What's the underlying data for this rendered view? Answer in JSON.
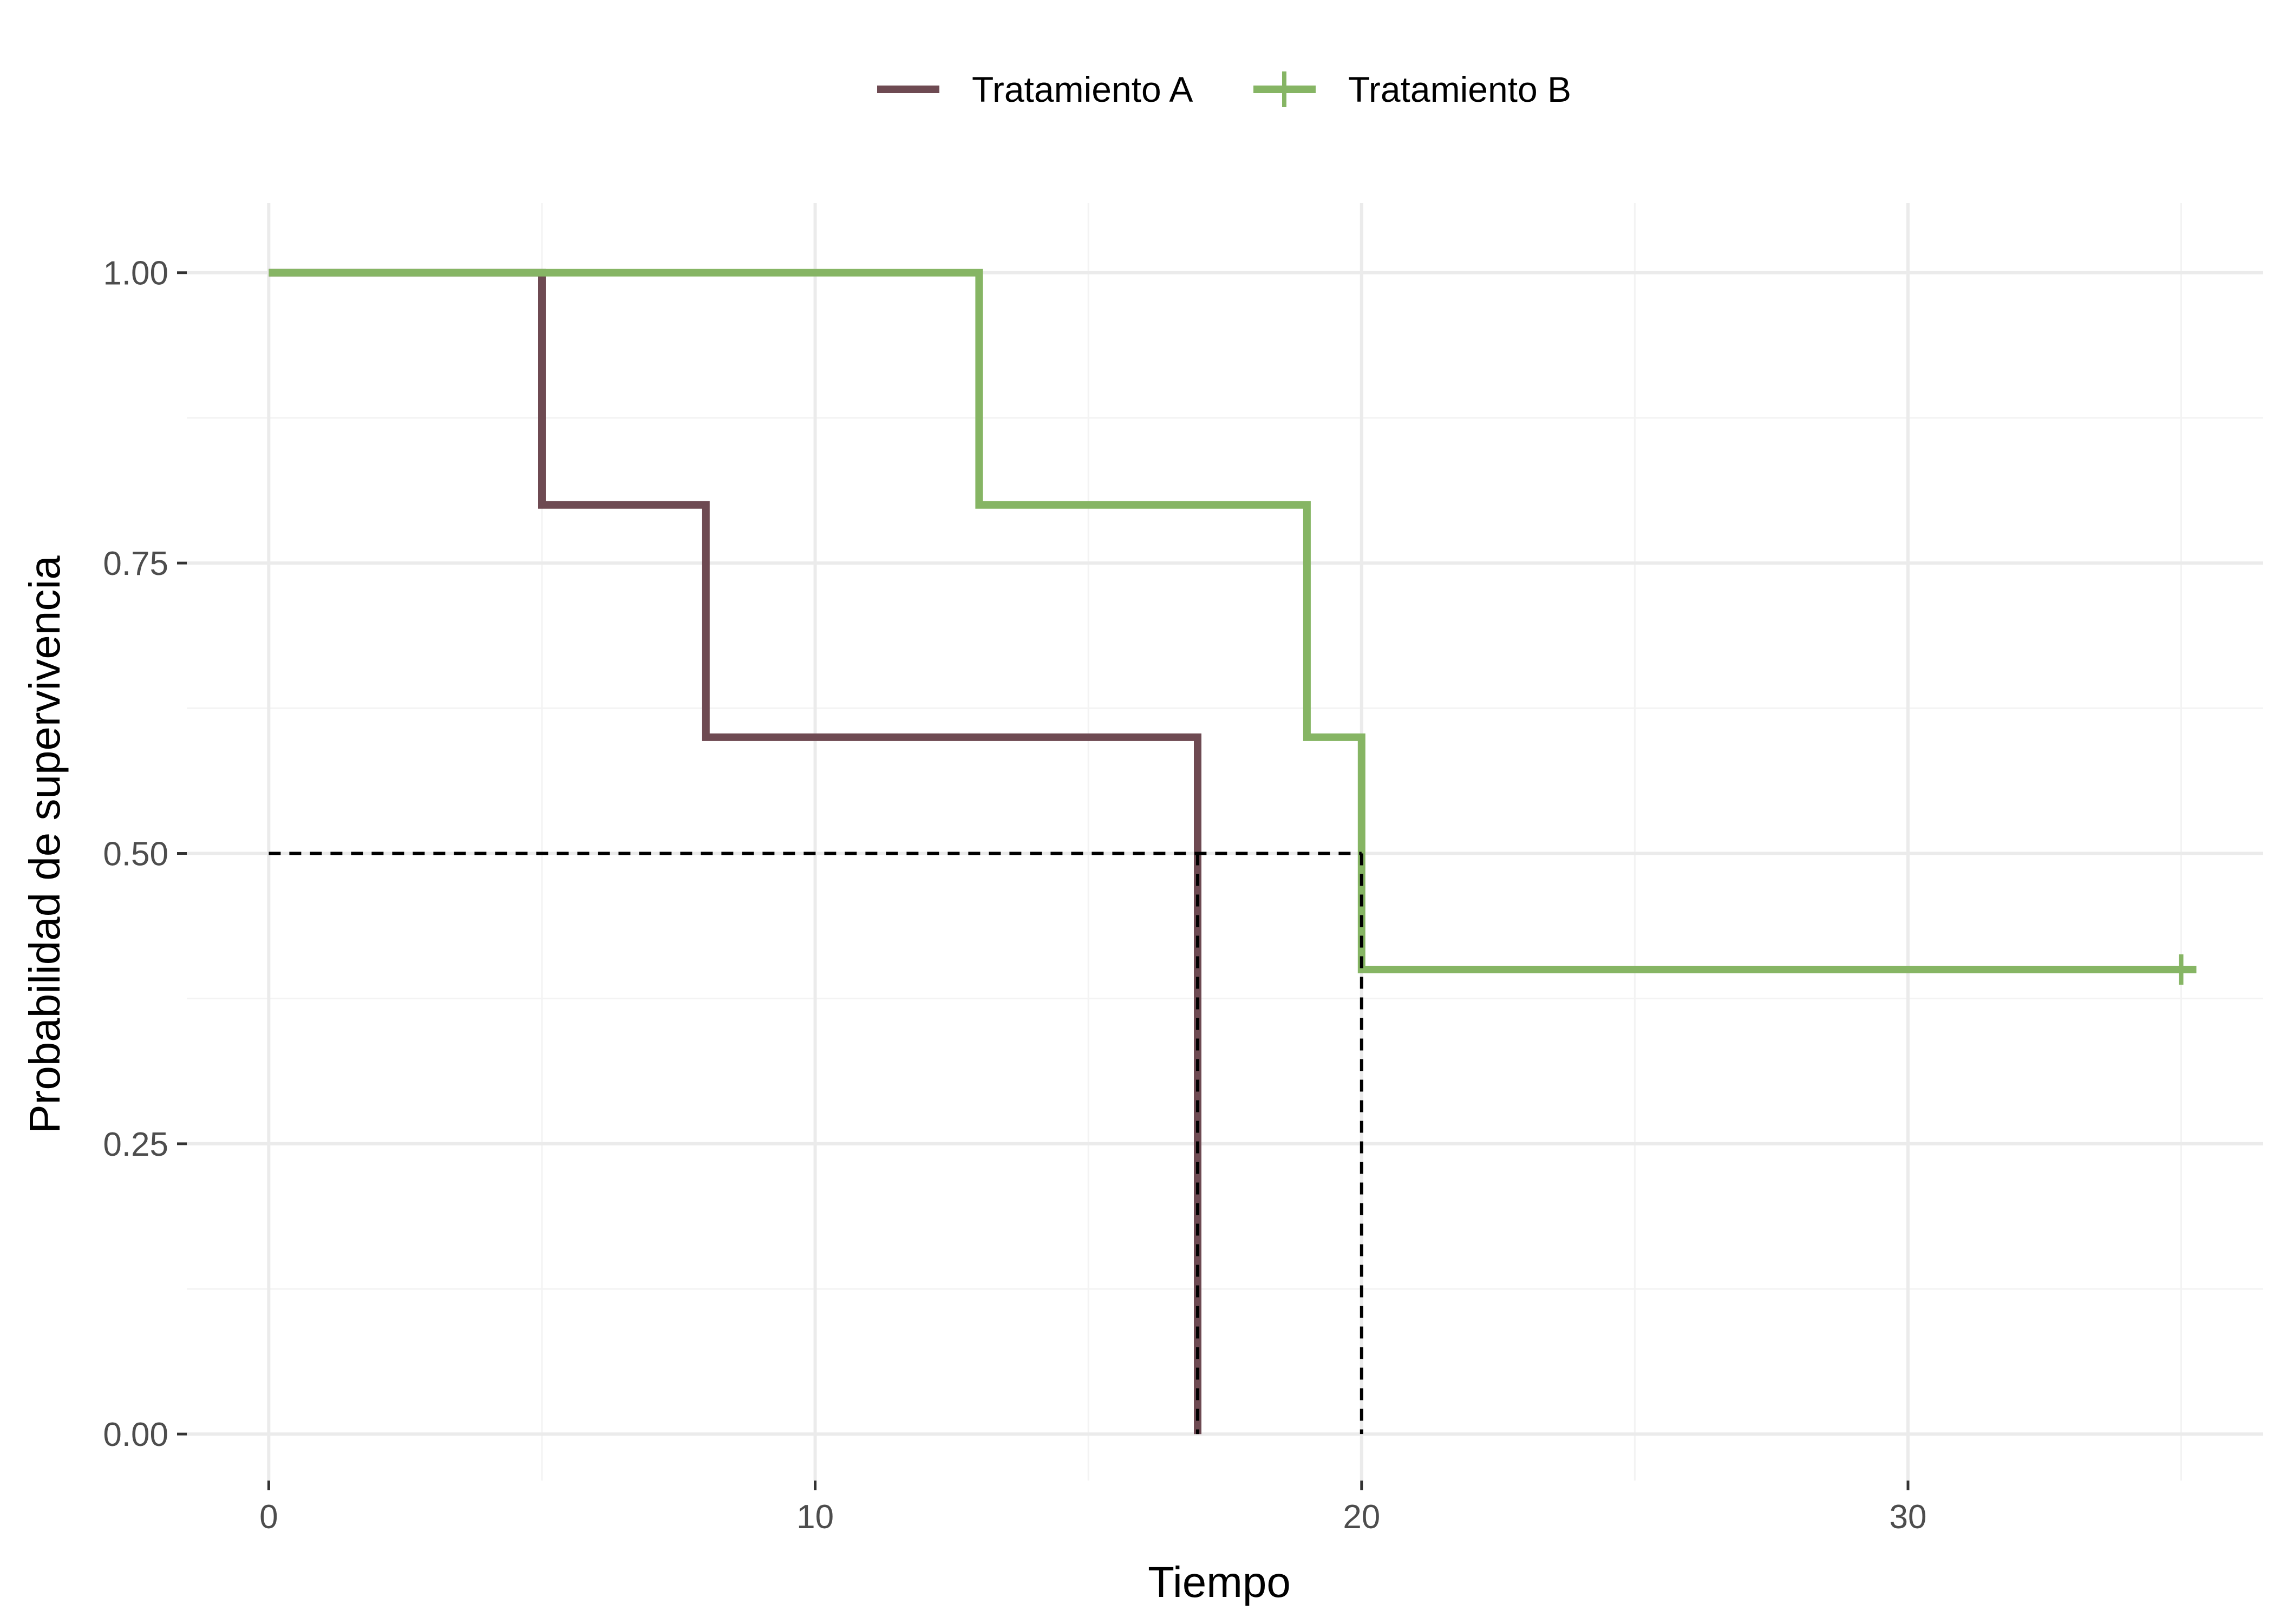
{
  "chart_data": {
    "type": "line",
    "subtype": "kaplan-meier-step",
    "title": "",
    "xlabel": "Tiempo",
    "ylabel": "Probabilidad de supervivencia",
    "xlim": [
      -1.5,
      36.5
    ],
    "ylim": [
      -0.04,
      1.06
    ],
    "x_ticks": [
      0,
      10,
      20,
      30
    ],
    "x_tick_labels": [
      "0",
      "10",
      "20",
      "30"
    ],
    "y_ticks": [
      0,
      0.25,
      0.5,
      0.75,
      1
    ],
    "y_tick_labels": [
      "0.00",
      "0.25",
      "0.50",
      "0.75",
      "1.00"
    ],
    "x_minor": [
      5,
      15,
      25,
      35
    ],
    "y_minor": [
      0.125,
      0.375,
      0.625,
      0.875
    ],
    "grid": true,
    "legend_position": "top",
    "series": [
      {
        "name": "Tratamiento A",
        "color": "#6e4a52",
        "steps": [
          [
            0,
            1
          ],
          [
            5,
            1
          ],
          [
            5,
            0.8
          ],
          [
            8,
            0.8
          ],
          [
            8,
            0.6
          ],
          [
            17,
            0.6
          ],
          [
            17,
            0
          ]
        ],
        "censored": []
      },
      {
        "name": "Tratamiento B",
        "color": "#86b564",
        "steps": [
          [
            0,
            1
          ],
          [
            13,
            1
          ],
          [
            13,
            0.8
          ],
          [
            19,
            0.8
          ],
          [
            19,
            0.6
          ],
          [
            20,
            0.6
          ],
          [
            20,
            0.4
          ],
          [
            35,
            0.4
          ]
        ],
        "censored": [
          [
            35,
            0.4
          ]
        ]
      }
    ],
    "median_reference": {
      "y": 0.5,
      "medians": [
        17,
        20
      ]
    }
  }
}
